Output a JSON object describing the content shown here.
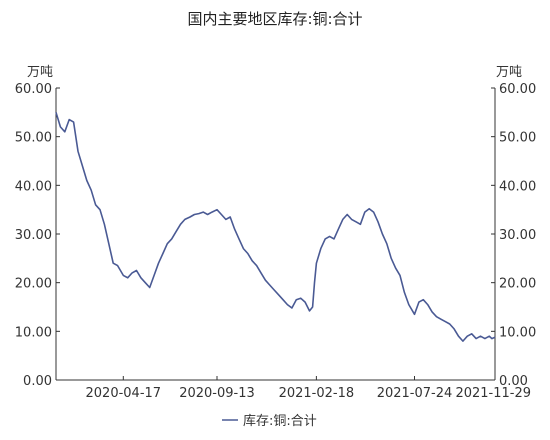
{
  "chart_data": {
    "type": "line",
    "title": "国内主要地区库存:铜:合计",
    "unit_left": "万吨",
    "unit_right": "万吨",
    "ylim": [
      0,
      60
    ],
    "y_ticks": [
      "0.00",
      "10.00",
      "20.00",
      "30.00",
      "40.00",
      "50.00",
      "60.00"
    ],
    "x_range": [
      "2020-01-01",
      "2021-11-29"
    ],
    "x_ticks": [
      "2020-04-17",
      "2020-09-13",
      "2021-02-18",
      "2021-07-24",
      "2021-11-29"
    ],
    "grid": false,
    "legend_position": "bottom",
    "series": [
      {
        "name": "库存:铜:合计",
        "color": "#4a5a94",
        "points": [
          [
            "2020-01-01",
            55
          ],
          [
            "2020-01-08",
            52
          ],
          [
            "2020-01-15",
            51
          ],
          [
            "2020-01-22",
            53.5
          ],
          [
            "2020-01-29",
            53
          ],
          [
            "2020-02-05",
            47
          ],
          [
            "2020-02-12",
            44
          ],
          [
            "2020-02-19",
            41
          ],
          [
            "2020-02-26",
            39
          ],
          [
            "2020-03-04",
            36
          ],
          [
            "2020-03-11",
            35
          ],
          [
            "2020-03-18",
            32
          ],
          [
            "2020-03-25",
            28
          ],
          [
            "2020-04-01",
            24
          ],
          [
            "2020-04-08",
            23.5
          ],
          [
            "2020-04-17",
            21.5
          ],
          [
            "2020-04-24",
            21
          ],
          [
            "2020-05-01",
            22
          ],
          [
            "2020-05-08",
            22.5
          ],
          [
            "2020-05-15",
            21
          ],
          [
            "2020-05-22",
            20
          ],
          [
            "2020-05-29",
            19
          ],
          [
            "2020-06-05",
            21.5
          ],
          [
            "2020-06-12",
            24
          ],
          [
            "2020-06-19",
            26
          ],
          [
            "2020-06-26",
            28
          ],
          [
            "2020-07-03",
            29
          ],
          [
            "2020-07-10",
            30.5
          ],
          [
            "2020-07-17",
            32
          ],
          [
            "2020-07-24",
            33
          ],
          [
            "2020-08-01",
            33.5
          ],
          [
            "2020-08-08",
            34
          ],
          [
            "2020-08-15",
            34.2
          ],
          [
            "2020-08-22",
            34.5
          ],
          [
            "2020-08-29",
            34
          ],
          [
            "2020-09-05",
            34.5
          ],
          [
            "2020-09-13",
            35
          ],
          [
            "2020-09-20",
            34
          ],
          [
            "2020-09-27",
            33
          ],
          [
            "2020-10-04",
            33.5
          ],
          [
            "2020-10-11",
            31
          ],
          [
            "2020-10-18",
            29
          ],
          [
            "2020-10-25",
            27
          ],
          [
            "2020-11-01",
            26
          ],
          [
            "2020-11-08",
            24.5
          ],
          [
            "2020-11-15",
            23.5
          ],
          [
            "2020-11-22",
            22
          ],
          [
            "2020-11-29",
            20.5
          ],
          [
            "2020-12-06",
            19.5
          ],
          [
            "2020-12-13",
            18.5
          ],
          [
            "2020-12-20",
            17.5
          ],
          [
            "2020-12-27",
            16.5
          ],
          [
            "2021-01-03",
            15.5
          ],
          [
            "2021-01-10",
            14.8
          ],
          [
            "2021-01-17",
            16.5
          ],
          [
            "2021-01-24",
            16.8
          ],
          [
            "2021-01-31",
            16
          ],
          [
            "2021-02-07",
            14.2
          ],
          [
            "2021-02-12",
            15
          ],
          [
            "2021-02-15",
            20
          ],
          [
            "2021-02-18",
            24
          ],
          [
            "2021-02-25",
            27
          ],
          [
            "2021-03-04",
            29
          ],
          [
            "2021-03-11",
            29.5
          ],
          [
            "2021-03-18",
            29
          ],
          [
            "2021-03-25",
            31
          ],
          [
            "2021-04-01",
            33
          ],
          [
            "2021-04-08",
            34
          ],
          [
            "2021-04-15",
            33
          ],
          [
            "2021-04-22",
            32.5
          ],
          [
            "2021-04-29",
            32
          ],
          [
            "2021-05-06",
            34.5
          ],
          [
            "2021-05-13",
            35.2
          ],
          [
            "2021-05-20",
            34.5
          ],
          [
            "2021-05-27",
            32.5
          ],
          [
            "2021-06-03",
            30
          ],
          [
            "2021-06-10",
            28
          ],
          [
            "2021-06-17",
            25
          ],
          [
            "2021-06-24",
            23
          ],
          [
            "2021-07-01",
            21.5
          ],
          [
            "2021-07-08",
            18
          ],
          [
            "2021-07-15",
            15.5
          ],
          [
            "2021-07-24",
            13.5
          ],
          [
            "2021-07-31",
            16
          ],
          [
            "2021-08-07",
            16.5
          ],
          [
            "2021-08-14",
            15.5
          ],
          [
            "2021-08-21",
            14
          ],
          [
            "2021-08-28",
            13
          ],
          [
            "2021-09-04",
            12.5
          ],
          [
            "2021-09-11",
            12
          ],
          [
            "2021-09-18",
            11.5
          ],
          [
            "2021-09-25",
            10.5
          ],
          [
            "2021-10-02",
            9
          ],
          [
            "2021-10-09",
            8
          ],
          [
            "2021-10-16",
            9
          ],
          [
            "2021-10-23",
            9.5
          ],
          [
            "2021-10-30",
            8.5
          ],
          [
            "2021-11-06",
            9
          ],
          [
            "2021-11-13",
            8.5
          ],
          [
            "2021-11-20",
            9
          ],
          [
            "2021-11-24",
            8.5
          ],
          [
            "2021-11-29",
            8.8
          ]
        ]
      }
    ]
  }
}
